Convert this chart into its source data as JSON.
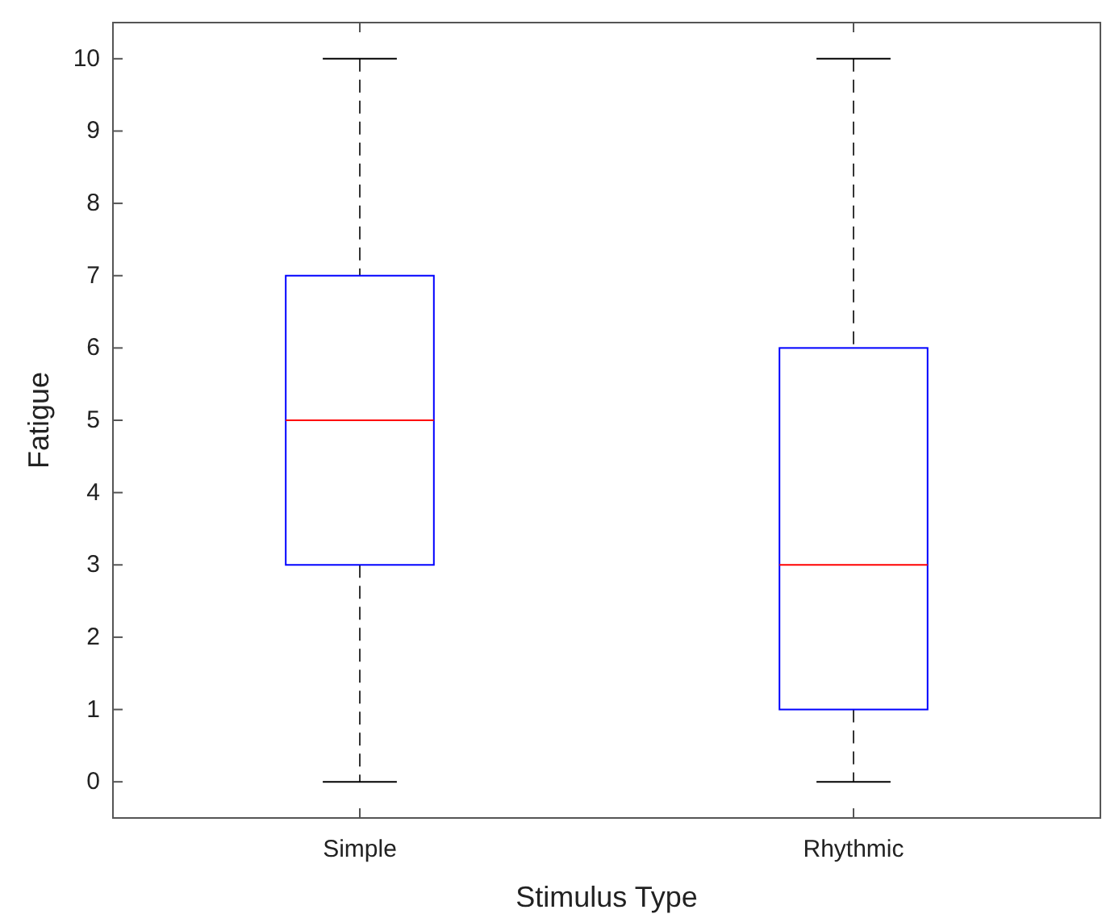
{
  "chart_data": {
    "type": "box",
    "xlabel": "Stimulus Type",
    "ylabel": "Fatigue",
    "categories": [
      "Simple",
      "Rhythmic"
    ],
    "series": [
      {
        "color": "#0000ff",
        "boxes": [
          {
            "low": 0,
            "q1": 3,
            "median": 5,
            "q3": 7,
            "high": 10
          },
          {
            "low": 0,
            "q1": 1,
            "median": 3,
            "q3": 6,
            "high": 10
          }
        ]
      }
    ],
    "ylim": [
      -0.5,
      10.5
    ],
    "yticks": [
      0,
      1,
      2,
      3,
      4,
      5,
      6,
      7,
      8,
      9,
      10
    ],
    "grid": false
  }
}
